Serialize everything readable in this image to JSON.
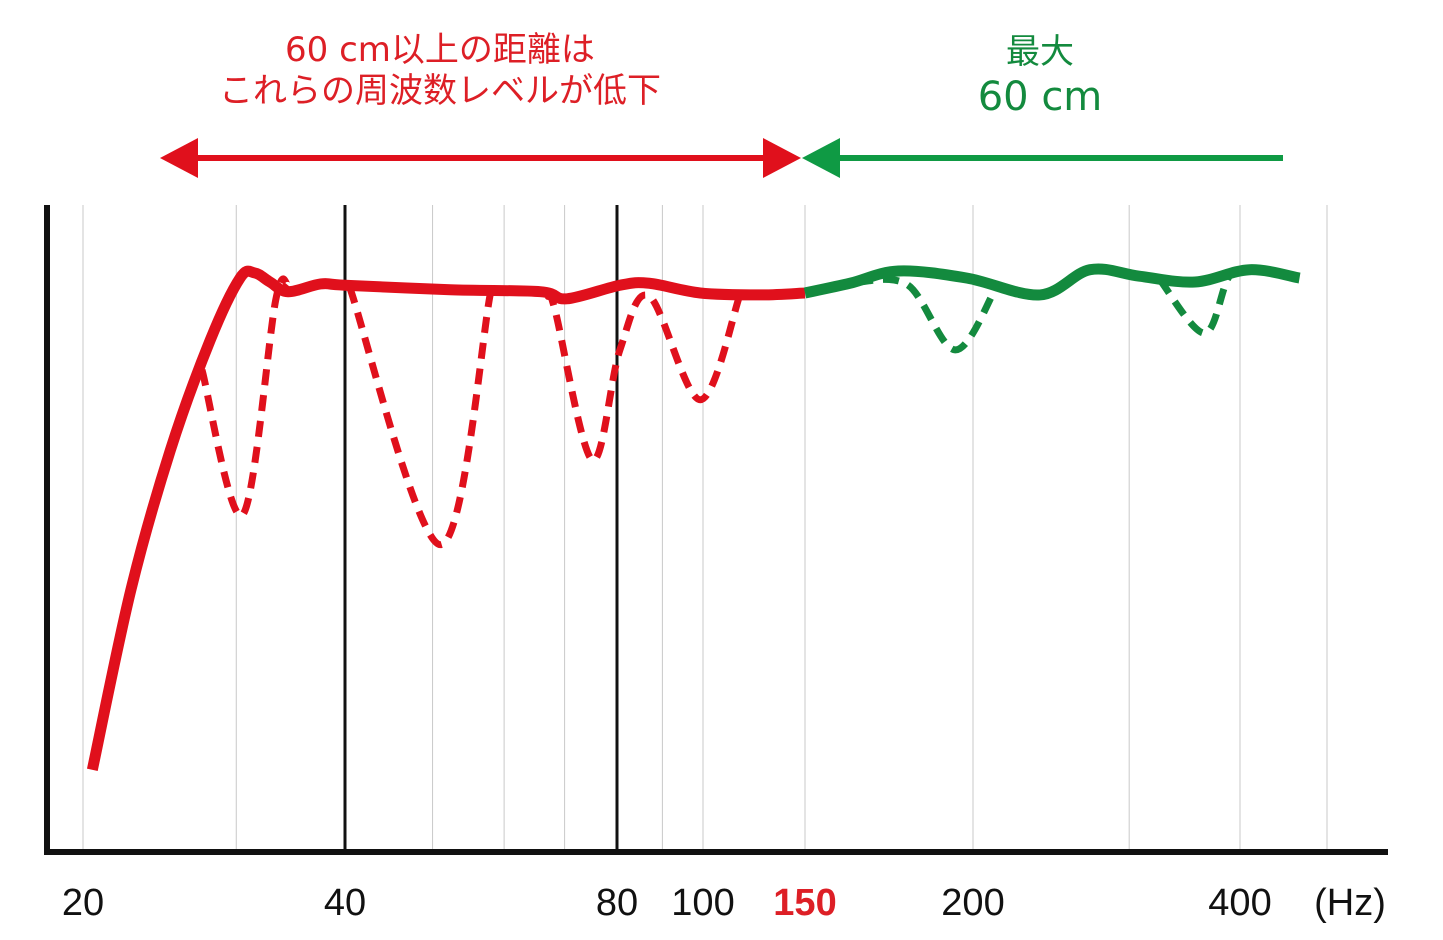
{
  "chart_data": {
    "type": "line",
    "title": "",
    "xlabel": "",
    "x_unit": "(Hz)",
    "ylabel": "",
    "x_scale": "log",
    "xlim": [
      20,
      500
    ],
    "ylim": [
      0,
      100
    ],
    "grid": true,
    "x_ticks": [
      {
        "value": 20,
        "label": "20",
        "highlight": false
      },
      {
        "value": 40,
        "label": "40",
        "highlight": false
      },
      {
        "value": 80,
        "label": "80",
        "highlight": false
      },
      {
        "value": 100,
        "label": "100",
        "highlight": false
      },
      {
        "value": 150,
        "label": "150",
        "highlight": true
      },
      {
        "value": 200,
        "label": "200",
        "highlight": false
      },
      {
        "value": 400,
        "label": "400",
        "highlight": false
      }
    ],
    "minor_grid": [
      30,
      50,
      60,
      70,
      90,
      300,
      500
    ],
    "major_lines": [
      40,
      80
    ],
    "colors": {
      "red": "#e0101c",
      "green": "#138a3e",
      "highlight_label": "#dd1f26"
    },
    "series": [
      {
        "style": "solid",
        "color": "#e0101c",
        "points": [
          [
            20.5,
            12.7
          ],
          [
            22.7,
            40.5
          ],
          [
            25.2,
            62.1
          ],
          [
            28,
            79.1
          ],
          [
            30.3,
            88.7
          ],
          [
            31.5,
            89.5
          ],
          [
            32.8,
            88.1
          ],
          [
            34.4,
            86.6
          ],
          [
            37.5,
            87.8
          ],
          [
            40,
            87.6
          ],
          [
            52.3,
            86.9
          ],
          [
            65.8,
            86.6
          ],
          [
            70.4,
            85.5
          ],
          [
            80.6,
            87.6
          ],
          [
            87,
            87.9
          ],
          [
            99.3,
            86.4
          ],
          [
            125.4,
            86.1
          ],
          [
            150,
            86.4
          ]
        ]
      },
      {
        "style": "solid",
        "color": "#138a3e",
        "points": [
          [
            150,
            86.4
          ],
          [
            162,
            87.9
          ],
          [
            176,
            89.8
          ],
          [
            198,
            88.7
          ],
          [
            238,
            86.1
          ],
          [
            271,
            90
          ],
          [
            308,
            89
          ],
          [
            356,
            88.1
          ],
          [
            410,
            90
          ],
          [
            466,
            88.7
          ]
        ]
      },
      {
        "style": "dashed",
        "color": "#e0101c",
        "points": [
          [
            27.4,
            74.5
          ],
          [
            30.5,
            52.1
          ],
          [
            33.3,
            85.3
          ],
          [
            34.4,
            87.6
          ]
        ]
      },
      {
        "style": "dashed",
        "color": "#e0101c",
        "points": [
          [
            40.5,
            87.2
          ],
          [
            51,
            47.5
          ],
          [
            57.9,
            86.1
          ]
        ]
      },
      {
        "style": "dashed",
        "color": "#e0101c",
        "points": [
          [
            67.1,
            85.9
          ],
          [
            68.3,
            83.8
          ],
          [
            75.1,
            60.6
          ],
          [
            80.6,
            77.6
          ],
          [
            87,
            85.9
          ],
          [
            99.3,
            69.9
          ],
          [
            115.8,
            86.1
          ]
        ]
      },
      {
        "style": "dashed",
        "color": "#138a3e",
        "points": [
          [
            164,
            88.1
          ],
          [
            179,
            87.6
          ],
          [
            194,
            77.6
          ],
          [
            211.8,
            86.9
          ]
        ]
      },
      {
        "style": "dashed",
        "color": "#138a3e",
        "points": [
          [
            325,
            88.4
          ],
          [
            365,
            80.2
          ],
          [
            390,
            89.2
          ],
          [
            421,
            90
          ]
        ]
      }
    ],
    "annotations": {
      "red_line1": "60 cm以上の距離は",
      "red_line2": "これらの周波数レベルが低下",
      "green_line1": "最大",
      "green_line2": "60 cm",
      "red_arrow_range": [
        20,
        150
      ],
      "green_arrow_range": [
        150,
        400
      ]
    }
  }
}
